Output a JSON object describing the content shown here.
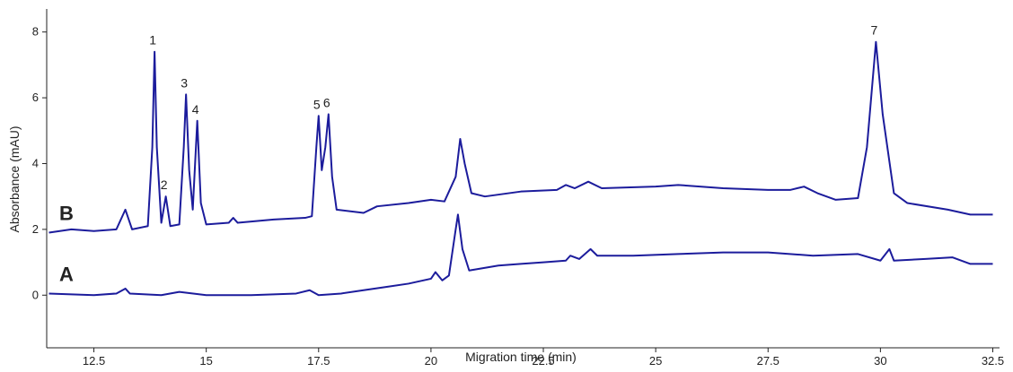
{
  "chart_data": {
    "type": "line",
    "x_label": "Migration time (min)",
    "y_label": "Absorbance (mAU)",
    "xlim": [
      11.45,
      32.65
    ],
    "ylim": [
      -1.6,
      8.7
    ],
    "xticks": [
      12.5,
      15,
      17.5,
      20,
      22.5,
      25,
      27.5,
      30,
      32.5
    ],
    "yticks": [
      0,
      2,
      4,
      6,
      8
    ],
    "grid": false,
    "series": [
      {
        "name": "B",
        "color": "#1c1c9c",
        "x": [
          11.5,
          12.0,
          12.5,
          13.0,
          13.2,
          13.35,
          13.7,
          13.8,
          13.85,
          13.9,
          14.0,
          14.1,
          14.2,
          14.4,
          14.5,
          14.55,
          14.62,
          14.7,
          14.8,
          14.88,
          15.0,
          15.5,
          15.6,
          15.7,
          16.5,
          17.2,
          17.35,
          17.45,
          17.5,
          17.57,
          17.65,
          17.72,
          17.8,
          17.9,
          18.5,
          18.8,
          19.5,
          20.0,
          20.3,
          20.55,
          20.65,
          20.75,
          20.9,
          21.2,
          22.0,
          22.8,
          23.0,
          23.2,
          23.5,
          23.8,
          25.0,
          25.5,
          26.5,
          27.5,
          28.0,
          28.3,
          28.6,
          29.0,
          29.5,
          29.7,
          29.9,
          30.05,
          30.3,
          30.6,
          31.5,
          32.0,
          32.5
        ],
        "values": [
          1.9,
          2.0,
          1.95,
          2.0,
          2.6,
          2.0,
          2.1,
          4.5,
          7.4,
          4.5,
          2.2,
          3.0,
          2.1,
          2.15,
          4.5,
          6.1,
          3.8,
          2.6,
          5.3,
          2.8,
          2.15,
          2.2,
          2.35,
          2.2,
          2.3,
          2.35,
          2.4,
          4.5,
          5.45,
          3.8,
          4.5,
          5.5,
          3.6,
          2.6,
          2.5,
          2.7,
          2.8,
          2.9,
          2.85,
          3.6,
          4.75,
          4.0,
          3.1,
          3.0,
          3.15,
          3.2,
          3.35,
          3.25,
          3.45,
          3.25,
          3.3,
          3.35,
          3.25,
          3.2,
          3.2,
          3.3,
          3.1,
          2.9,
          2.95,
          4.5,
          7.7,
          5.5,
          3.1,
          2.8,
          2.6,
          2.45,
          2.45
        ]
      },
      {
        "name": "A",
        "color": "#1c1c9c",
        "x": [
          11.5,
          12.5,
          13.0,
          13.2,
          13.3,
          14.0,
          14.4,
          15.0,
          16.0,
          17.0,
          17.3,
          17.5,
          18.0,
          18.5,
          19.0,
          19.5,
          20.0,
          20.1,
          20.25,
          20.4,
          20.55,
          20.6,
          20.7,
          20.85,
          21.5,
          22.0,
          22.5,
          23.0,
          23.1,
          23.3,
          23.55,
          23.7,
          24.5,
          25.5,
          26.5,
          27.5,
          28.5,
          29.5,
          30.0,
          30.2,
          30.3,
          31.0,
          31.6,
          32.0,
          32.5
        ],
        "values": [
          0.05,
          0.0,
          0.05,
          0.2,
          0.05,
          0.0,
          0.1,
          0.0,
          0.0,
          0.05,
          0.15,
          0.0,
          0.05,
          0.15,
          0.25,
          0.35,
          0.5,
          0.7,
          0.45,
          0.6,
          2.0,
          2.45,
          1.4,
          0.75,
          0.9,
          0.95,
          1.0,
          1.05,
          1.2,
          1.1,
          1.4,
          1.2,
          1.2,
          1.25,
          1.3,
          1.3,
          1.2,
          1.25,
          1.05,
          1.4,
          1.05,
          1.1,
          1.15,
          0.95,
          0.95
        ]
      }
    ],
    "annotations": [
      {
        "text": "1",
        "x": 13.85,
        "y": 7.4
      },
      {
        "text": "2",
        "x": 14.1,
        "y": 3.0
      },
      {
        "text": "3",
        "x": 14.55,
        "y": 6.1
      },
      {
        "text": "4",
        "x": 14.8,
        "y": 5.3
      },
      {
        "text": "5",
        "x": 17.5,
        "y": 5.45
      },
      {
        "text": "6",
        "x": 17.72,
        "y": 5.5
      },
      {
        "text": "7",
        "x": 29.9,
        "y": 7.7
      }
    ]
  }
}
